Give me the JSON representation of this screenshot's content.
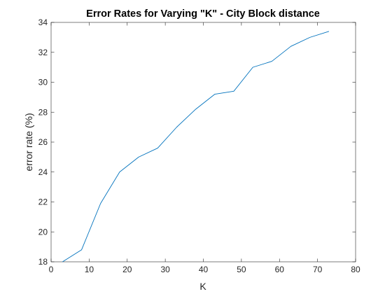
{
  "chart_data": {
    "type": "line",
    "title": "Error Rates for Varying \"K\" - City Block distance",
    "xlabel": "K",
    "ylabel": "error rate (%)",
    "xlim": [
      0,
      80
    ],
    "ylim": [
      18,
      34
    ],
    "xticks": [
      0,
      10,
      20,
      30,
      40,
      50,
      60,
      70,
      80
    ],
    "yticks": [
      18,
      20,
      22,
      24,
      26,
      28,
      30,
      32,
      34
    ],
    "grid": false,
    "line_color": "#0072BD",
    "series": [
      {
        "x": [
          3,
          8,
          13,
          18,
          23,
          28,
          33,
          38,
          43,
          48,
          53,
          58,
          63,
          68,
          73
        ],
        "values": [
          18.0,
          18.8,
          21.9,
          24.0,
          25.0,
          25.6,
          27.0,
          28.2,
          29.2,
          29.4,
          31.0,
          31.4,
          32.4,
          33.0,
          33.4
        ]
      }
    ]
  }
}
